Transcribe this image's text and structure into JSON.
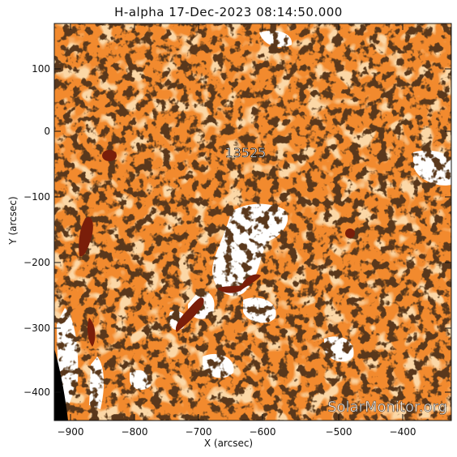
{
  "title": "H-alpha 17-Dec-2023 08:14:50.000",
  "xlabel": "X (arcsec)",
  "ylabel": "Y (arcsec)",
  "region_label": "13525",
  "watermark": "SolarMonitor.org",
  "x_ticks": [
    "−900",
    "−800",
    "−700",
    "−600",
    "−500",
    "−400"
  ],
  "y_ticks": [
    "100",
    "0",
    "−100",
    "−200",
    "−300",
    "−400"
  ],
  "colors": {
    "chromosphere": "#f28a2e",
    "bright": "#f7a55a",
    "dark_feature": "#7a1e0a",
    "plage": "#ffffff",
    "space": "#000000",
    "text": "#111111"
  }
}
